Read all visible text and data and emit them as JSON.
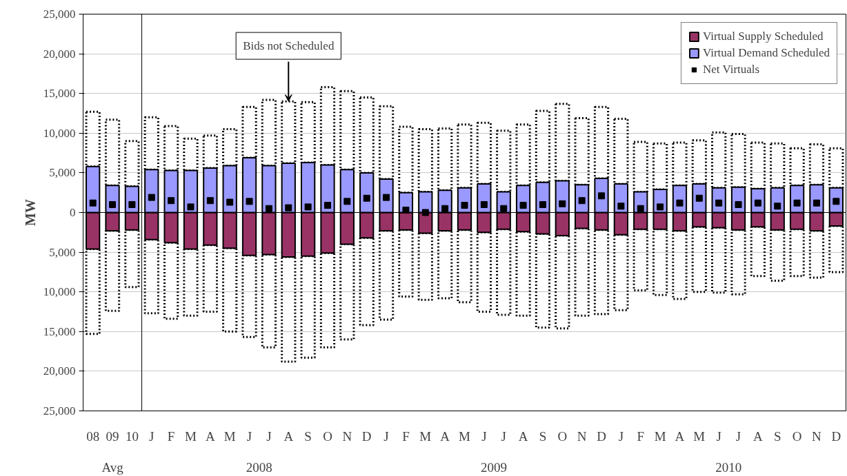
{
  "chart_data": {
    "type": "bar",
    "stacked": true,
    "ylabel": "MW",
    "categories": [
      "08",
      "09",
      "10",
      "J",
      "F",
      "M",
      "A",
      "M",
      "J",
      "J",
      "A",
      "S",
      "O",
      "N",
      "D",
      "J",
      "F",
      "M",
      "A",
      "M",
      "J",
      "J",
      "A",
      "S",
      "O",
      "N",
      "D",
      "J",
      "F",
      "M",
      "A",
      "M",
      "J",
      "J",
      "A",
      "S",
      "O",
      "N",
      "D"
    ],
    "series": [
      {
        "name": "Virtual Supply Scheduled",
        "color": "#993366",
        "values": [
          -4600,
          -2300,
          -2200,
          -3400,
          -3800,
          -4600,
          -4100,
          -4500,
          -5400,
          -5300,
          -5600,
          -5500,
          -5100,
          -4000,
          -3200,
          -2300,
          -2200,
          -2600,
          -2300,
          -2200,
          -2500,
          -2100,
          -2400,
          -2700,
          -2900,
          -2000,
          -2200,
          -2800,
          -2100,
          -2100,
          -2300,
          -1800,
          -1900,
          -2200,
          -1800,
          -2200,
          -2100,
          -2300,
          -1700
        ]
      },
      {
        "name": "Virtual Demand Scheduled",
        "color": "#9999ff",
        "values": [
          5800,
          3400,
          3300,
          5400,
          5300,
          5300,
          5600,
          5900,
          6900,
          5900,
          6200,
          6300,
          6000,
          5400,
          5000,
          4200,
          2500,
          2600,
          2800,
          3100,
          3600,
          2600,
          3400,
          3800,
          4000,
          3500,
          4300,
          3600,
          2600,
          2900,
          3400,
          3600,
          3100,
          3200,
          3000,
          3100,
          3400,
          3500,
          3100
        ]
      },
      {
        "color": "#000000",
        "line_style": "dotted",
        "values": [
          -10700,
          -10100,
          -7200,
          -9300,
          -9600,
          -8400,
          -8400,
          -10500,
          -10300,
          -11700,
          -13200,
          -12800,
          -11900,
          -12000,
          -11000,
          -11200,
          -8400,
          -8400,
          -8500,
          -9100,
          -10000,
          -10800,
          -10600,
          -11800,
          -11700,
          -11000,
          -10600,
          -9500,
          -7700,
          -8300,
          -8600,
          -8200,
          -8200,
          -8100,
          -6200,
          -6400,
          -5900,
          -5900,
          -5800
        ]
      },
      {
        "color": "#000000",
        "line_style": "dotted",
        "values": [
          6900,
          8300,
          5700,
          6600,
          5600,
          4000,
          4100,
          4600,
          6400,
          8300,
          7800,
          7600,
          9800,
          9900,
          9500,
          9200,
          8300,
          7900,
          7800,
          8000,
          7700,
          7700,
          7700,
          9000,
          9700,
          8400,
          9000,
          8200,
          6300,
          5800,
          5400,
          5500,
          7000,
          6700,
          5800,
          5600,
          4700,
          5100,
          5000
        ]
      },
      {
        "name": "Net Virtuals",
        "type": "lollipop",
        "color": "#000000",
        "marker": "square",
        "values": [
          1200,
          1000,
          1000,
          1900,
          1500,
          700,
          1500,
          1300,
          1400,
          500,
          600,
          700,
          900,
          1400,
          1800,
          1900,
          300,
          0,
          500,
          900,
          1000,
          500,
          900,
          1000,
          1100,
          1500,
          2100,
          800,
          500,
          700,
          1200,
          1800,
          1200,
          1000,
          1200,
          800,
          1200,
          1200,
          1400
        ]
      }
    ],
    "ylim": [
      -25000,
      25000
    ],
    "yticks": [
      {
        "value": -25000,
        "label": "25,000"
      },
      {
        "value": -20000,
        "label": "20,000"
      },
      {
        "value": -15000,
        "label": "15,000"
      },
      {
        "value": -10000,
        "label": "10,000"
      },
      {
        "value": -5000,
        "label": "5,000"
      },
      {
        "value": 0,
        "label": "0"
      },
      {
        "value": 5000,
        "label": "5,000"
      },
      {
        "value": 10000,
        "label": "10,000"
      },
      {
        "value": 15000,
        "label": "15,000"
      },
      {
        "value": 20000,
        "label": "20,000"
      },
      {
        "value": 25000,
        "label": "25,000"
      }
    ],
    "grid": "y",
    "legend": "top right",
    "annotations": [
      {
        "text": "Bids not Scheduled",
        "y": 14000
      },
      "Avg",
      "2008",
      "2009",
      "2010"
    ]
  }
}
